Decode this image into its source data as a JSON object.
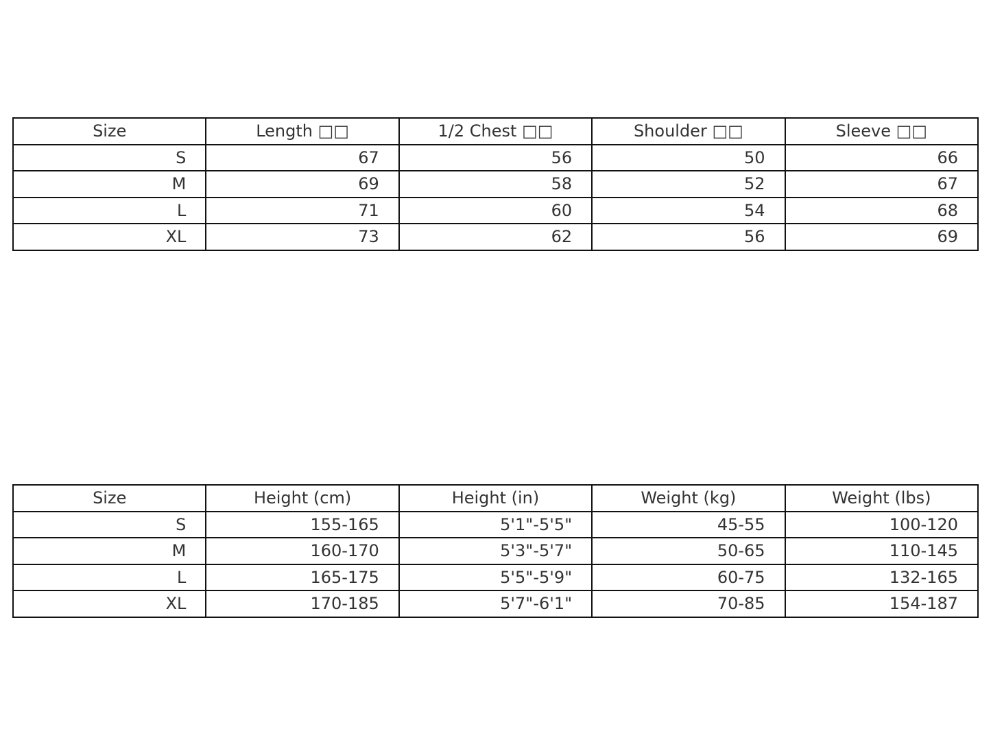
{
  "measurements_table": {
    "headers": [
      "Size",
      "Length □□",
      "1/2 Chest □□",
      "Shoulder □□",
      "Sleeve □□"
    ],
    "rows": [
      [
        "S",
        "67",
        "56",
        "50",
        "66"
      ],
      [
        "M",
        "69",
        "58",
        "52",
        "67"
      ],
      [
        "L",
        "71",
        "60",
        "54",
        "68"
      ],
      [
        "XL",
        "73",
        "62",
        "56",
        "69"
      ]
    ]
  },
  "fit_table": {
    "headers": [
      "Size",
      "Height (cm)",
      "Height (in)",
      "Weight (kg)",
      "Weight (lbs)"
    ],
    "rows": [
      [
        "S",
        "155-165",
        "5'1\"-5'5\"",
        "45-55",
        "100-120"
      ],
      [
        "M",
        "160-170",
        "5'3\"-5'7\"",
        "50-65",
        "110-145"
      ],
      [
        "L",
        "165-175",
        "5'5\"-5'9\"",
        "60-75",
        "132-165"
      ],
      [
        "XL",
        "170-185",
        "5'7\"-6'1\"",
        "70-85",
        "154-187"
      ]
    ]
  }
}
